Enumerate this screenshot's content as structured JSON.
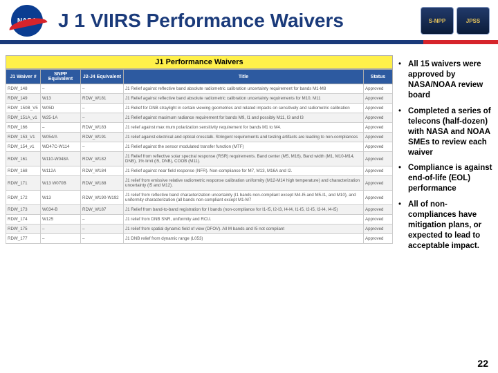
{
  "header": {
    "title": "J 1 VIIRS Performance Waivers",
    "nasa": "NASA",
    "snpp": "S-NPP",
    "jpss": "JPSS"
  },
  "table": {
    "caption": "J1 Performance Waivers",
    "columns": [
      "J1 Waiver #",
      "SNPP Equivalent",
      "J2-J4 Equivalent",
      "Title",
      "Status"
    ],
    "rows": [
      [
        "RDW_148",
        "–",
        "–",
        "J1 Relief against reflective band absolute radiometric calibration uncertainty requirement for bands M1-M8",
        "Approved"
      ],
      [
        "RDW_149",
        "W13",
        "RDW_W181",
        "J1 Relief against reflective band absolute radiometric calibration uncertainty requirements for M10, M11",
        "Approved"
      ],
      [
        "RDW_150B_V5",
        "W05D",
        "–",
        "J1 Relief for DNB straylight in certain viewing geometries and related impacts on sensitively and radiometric calibration",
        "Approved"
      ],
      [
        "RDW_151A_v1",
        "W25-1A",
        "–",
        "J1 Relief against maximum radiance requirement for bands M9, I1 and possibly M11, I3 and I3",
        "Approved"
      ],
      [
        "RDW_166",
        "–",
        "RDW_W183",
        "J1 relief against max mum polarization sensitivity requirement for bands M1 to M4.",
        "Approved"
      ],
      [
        "RDW_153_V1",
        "W054/A",
        "RDW_W191",
        "J1 relief against electrical and optical crosstalk. Stringent requirements and testing artifacts are leading to non-compliances",
        "Approved"
      ],
      [
        "RDW_154_v1",
        "WD47C-W114",
        "–",
        "J1 Relief against the sensor modulated transfer function (MTF)",
        "Approved"
      ],
      [
        "RDW_161",
        "W110-W048A",
        "RDW_W182",
        "J1 Relief from reflective solar spectral response (RSR) requirements. Band center (M5, M16), Band width (M1, M10-M14, DNB), 1% limit (I5, DNB), COOB (M11).",
        "Approved"
      ],
      [
        "RDW_168",
        "W112A",
        "RDW_W184",
        "J1 Relief against near field response (NFR). Non-compliance for M7, M13, M16A and I2.",
        "Approved"
      ],
      [
        "RDW_171",
        "W13 W070B",
        "RDW_W188",
        "J1 relief from emissive relative radiometric response calibration uniformity (M12-M14 high temperature) and characterization uncertainty (I5 and M12).",
        "Approved"
      ],
      [
        "RDW_172",
        "W13",
        "RDW_W190-W192",
        "J1 relief from reflective band characterization uncertainty (I1 bands non-compliant except M4-I5 and M5-I1, and M10), and uniformity characterization (all bands non-compliant except M1-M7",
        "Approved"
      ],
      [
        "RDW_173",
        "W034-B",
        "RDW_W187",
        "J1 Relief from band-to-band registration for I bands (non-compliance for I1-I5, I2-I3, I4-I4, I1-I5, I2-I5, I3-I4, I4-I5)",
        "Approved"
      ],
      [
        "RDW_174",
        "W125",
        "–",
        "J1 relief from DNB SNR, uniformity and RCU.",
        "Approved"
      ],
      [
        "RDW_175",
        "–",
        "–",
        "J1 relief from spatial dynamic field of view (DFOV). All M bands and I5 not compliant",
        "Approved"
      ],
      [
        "RDW_177",
        "–",
        "–",
        "J1 DNB relief from dynamic range (L053)",
        "Approved"
      ]
    ]
  },
  "bullets": [
    "All 15 waivers were approved by NASA/NOAA review board",
    "Completed a series of telecons (half-dozen) with NASA and NOAA SMEs to review each waiver",
    "Compliance is against end-of-life (EOL) performance",
    "All of non-compliances have mitigation plans, or expected to lead to acceptable impact."
  ],
  "page_number": "22",
  "colors": {
    "title": "#1a3a7a",
    "accent": "#d6242b",
    "th_bg": "#2d5aa0",
    "caption_bg": "#fff04a"
  }
}
